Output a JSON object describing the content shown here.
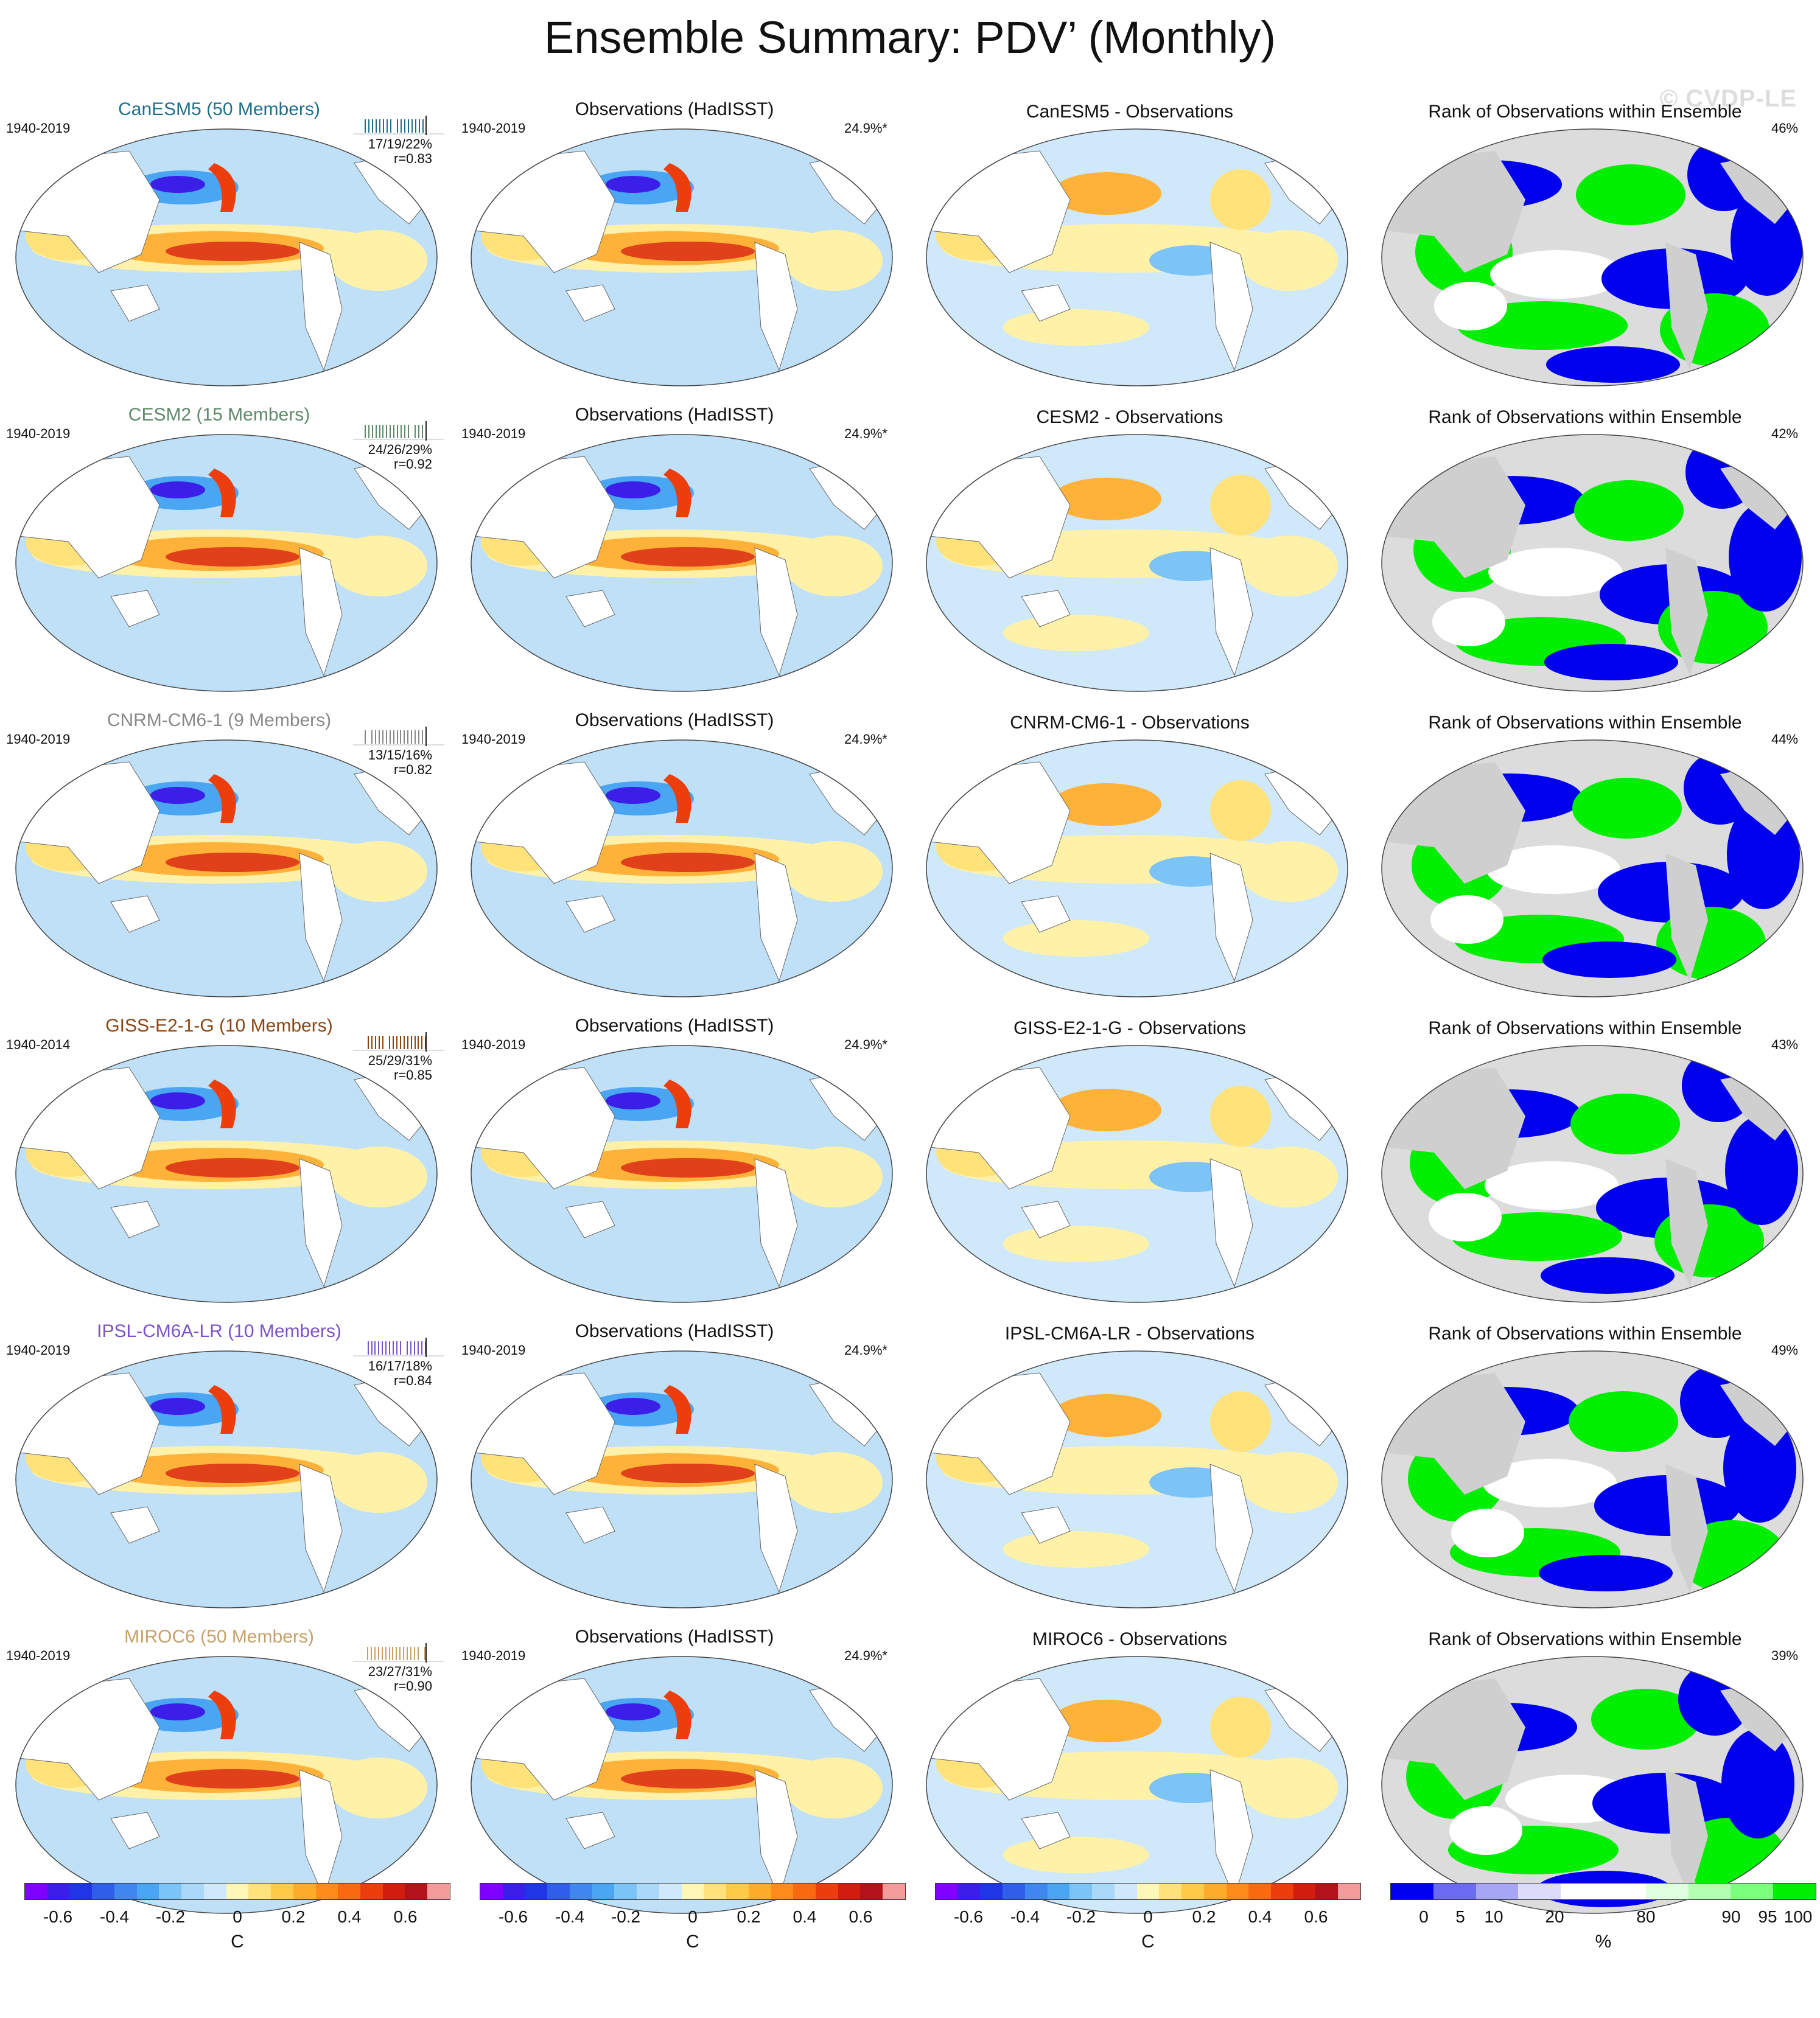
{
  "title": "Ensemble Summary: PDV’ (Monthly)",
  "watermark": "© CVDP-LE",
  "rows": [
    {
      "model": "CanESM5 (50 Members)",
      "model_color": "#1f6f8b",
      "period": "1940-2019",
      "stats": "17/19/22%",
      "r": "r=0.83",
      "obs_title": "Observations (HadISST)",
      "obs_period": "1940-2019",
      "obs_pct": "24.9%*",
      "diff_title": "CanESM5 - Observations",
      "rank_title": "Rank of Observations within Ensemble",
      "rank_pct": "46%"
    },
    {
      "model": "CESM2 (15 Members)",
      "model_color": "#5e8a6a",
      "period": "1940-2019",
      "stats": "24/26/29%",
      "r": "r=0.92",
      "obs_title": "Observations (HadISST)",
      "obs_period": "1940-2019",
      "obs_pct": "24.9%*",
      "diff_title": "CESM2 - Observations",
      "rank_title": "Rank of Observations within Ensemble",
      "rank_pct": "42%"
    },
    {
      "model": "CNRM-CM6-1 (9 Members)",
      "model_color": "#888888",
      "period": "1940-2019",
      "stats": "13/15/16%",
      "r": "r=0.82",
      "obs_title": "Observations (HadISST)",
      "obs_period": "1940-2019",
      "obs_pct": "24.9%*",
      "diff_title": "CNRM-CM6-1 - Observations",
      "rank_title": "Rank of Observations within Ensemble",
      "rank_pct": "44%"
    },
    {
      "model": "GISS-E2-1-G (10 Members)",
      "model_color": "#8b4513",
      "period": "1940-2014",
      "stats": "25/29/31%",
      "r": "r=0.85",
      "obs_title": "Observations (HadISST)",
      "obs_period": "1940-2019",
      "obs_pct": "24.9%*",
      "diff_title": "GISS-E2-1-G - Observations",
      "rank_title": "Rank of Observations within Ensemble",
      "rank_pct": "43%"
    },
    {
      "model": "IPSL-CM6A-LR (10 Members)",
      "model_color": "#7b52c7",
      "period": "1940-2019",
      "stats": "16/17/18%",
      "r": "r=0.84",
      "obs_title": "Observations (HadISST)",
      "obs_period": "1940-2019",
      "obs_pct": "24.9%*",
      "diff_title": "IPSL-CM6A-LR - Observations",
      "rank_title": "Rank of Observations within Ensemble",
      "rank_pct": "49%"
    },
    {
      "model": "MIROC6 (50 Members)",
      "model_color": "#c8a06a",
      "period": "1940-2019",
      "stats": "23/27/31%",
      "r": "r=0.90",
      "obs_title": "Observations (HadISST)",
      "obs_period": "1940-2019",
      "obs_pct": "24.9%*",
      "diff_title": "MIROC6 - Observations",
      "rank_title": "Rank of Observations within Ensemble",
      "rank_pct": "39%"
    }
  ],
  "colorbar_temp": {
    "colors": [
      "#7f00ff",
      "#3b1fe8",
      "#2036e6",
      "#2f5fea",
      "#3f86ef",
      "#4aa6f3",
      "#7cc3f6",
      "#a9d8f8",
      "#cfe8fa",
      "#fff7b8",
      "#ffe27a",
      "#ffca46",
      "#ffac2a",
      "#ff8c1a",
      "#f96a10",
      "#eb3e0c",
      "#d11c0e",
      "#b4121a",
      "#f39a9a"
    ],
    "ticks": [
      "-0.6",
      "-0.4",
      "-0.2",
      "0",
      "0.2",
      "0.4",
      "0.6"
    ],
    "unit": "C"
  },
  "colorbar_rank": {
    "colors": [
      "#0000ee",
      "#6b6bf2",
      "#a6a6f5",
      "#dcdcfa",
      "#ffffff",
      "#ffffff",
      "#e0ffe0",
      "#b2ffb2",
      "#7cff7c",
      "#00ee00"
    ],
    "ticks": [
      "0",
      "5",
      "10",
      "20",
      "80",
      "90",
      "95",
      "100"
    ],
    "unit": "%"
  }
}
